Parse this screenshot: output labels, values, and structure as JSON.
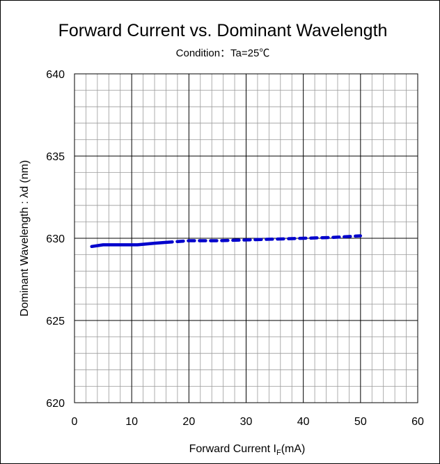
{
  "chart_data": {
    "type": "line",
    "title": "Forward Current vs. Dominant Wavelength",
    "subtitle": "Condition：Ta=25℃",
    "xlabel_main": "Forward Current I",
    "xlabel_sub": "F",
    "xlabel_unit": "(mA)",
    "ylabel": "Dominant Wavelength : λd  (nm)",
    "xlim": [
      0,
      60
    ],
    "ylim": [
      620,
      640
    ],
    "x_major_ticks": [
      0,
      10,
      20,
      30,
      40,
      50,
      60
    ],
    "y_major_ticks": [
      620,
      625,
      630,
      635,
      640
    ],
    "x_minor_step": 2,
    "y_minor_step": 1,
    "grid": true,
    "series": [
      {
        "style": "solid",
        "color": "#0000cc",
        "x": [
          3,
          5,
          8,
          11,
          14,
          16
        ],
        "y": [
          629.5,
          629.6,
          629.6,
          629.6,
          629.7,
          629.75
        ]
      },
      {
        "style": "dashed",
        "color": "#0000cc",
        "x": [
          16,
          20,
          25,
          30,
          35,
          40,
          45,
          50
        ],
        "y": [
          629.75,
          629.85,
          629.85,
          629.9,
          629.95,
          630.0,
          630.05,
          630.15
        ]
      }
    ]
  }
}
